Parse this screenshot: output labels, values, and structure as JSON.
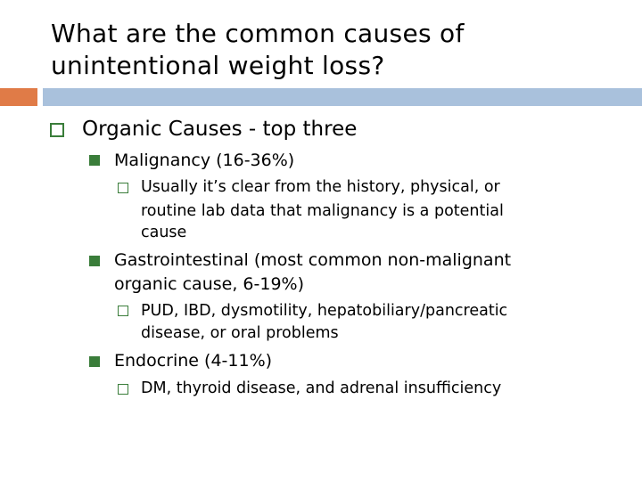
{
  "slide": {
    "title": "What are the common causes of\nunintentional weight loss?",
    "accent_color": "#e07b47",
    "rule_color": "#a9c1dc",
    "bullet_color": "#3a7d3a"
  },
  "outline": {
    "heading": "Organic Causes - top three",
    "items": [
      {
        "label": "Malignancy (16-36%)",
        "detail_lines": [
          "Usually it’s clear from the history, physical,  or",
          "routine lab data that malignancy is a potential",
          "cause"
        ]
      },
      {
        "label_lines": [
          "Gastrointestinal (most common non-malignant",
          "organic cause, 6-19%)"
        ],
        "detail_lines": [
          "PUD, IBD, dysmotility, hepatobiliary/pancreatic",
          "disease, or oral problems"
        ]
      },
      {
        "label": "Endocrine (4-11%)",
        "detail_lines": [
          "DM, thyroid disease, and adrenal insufficiency"
        ]
      }
    ]
  }
}
